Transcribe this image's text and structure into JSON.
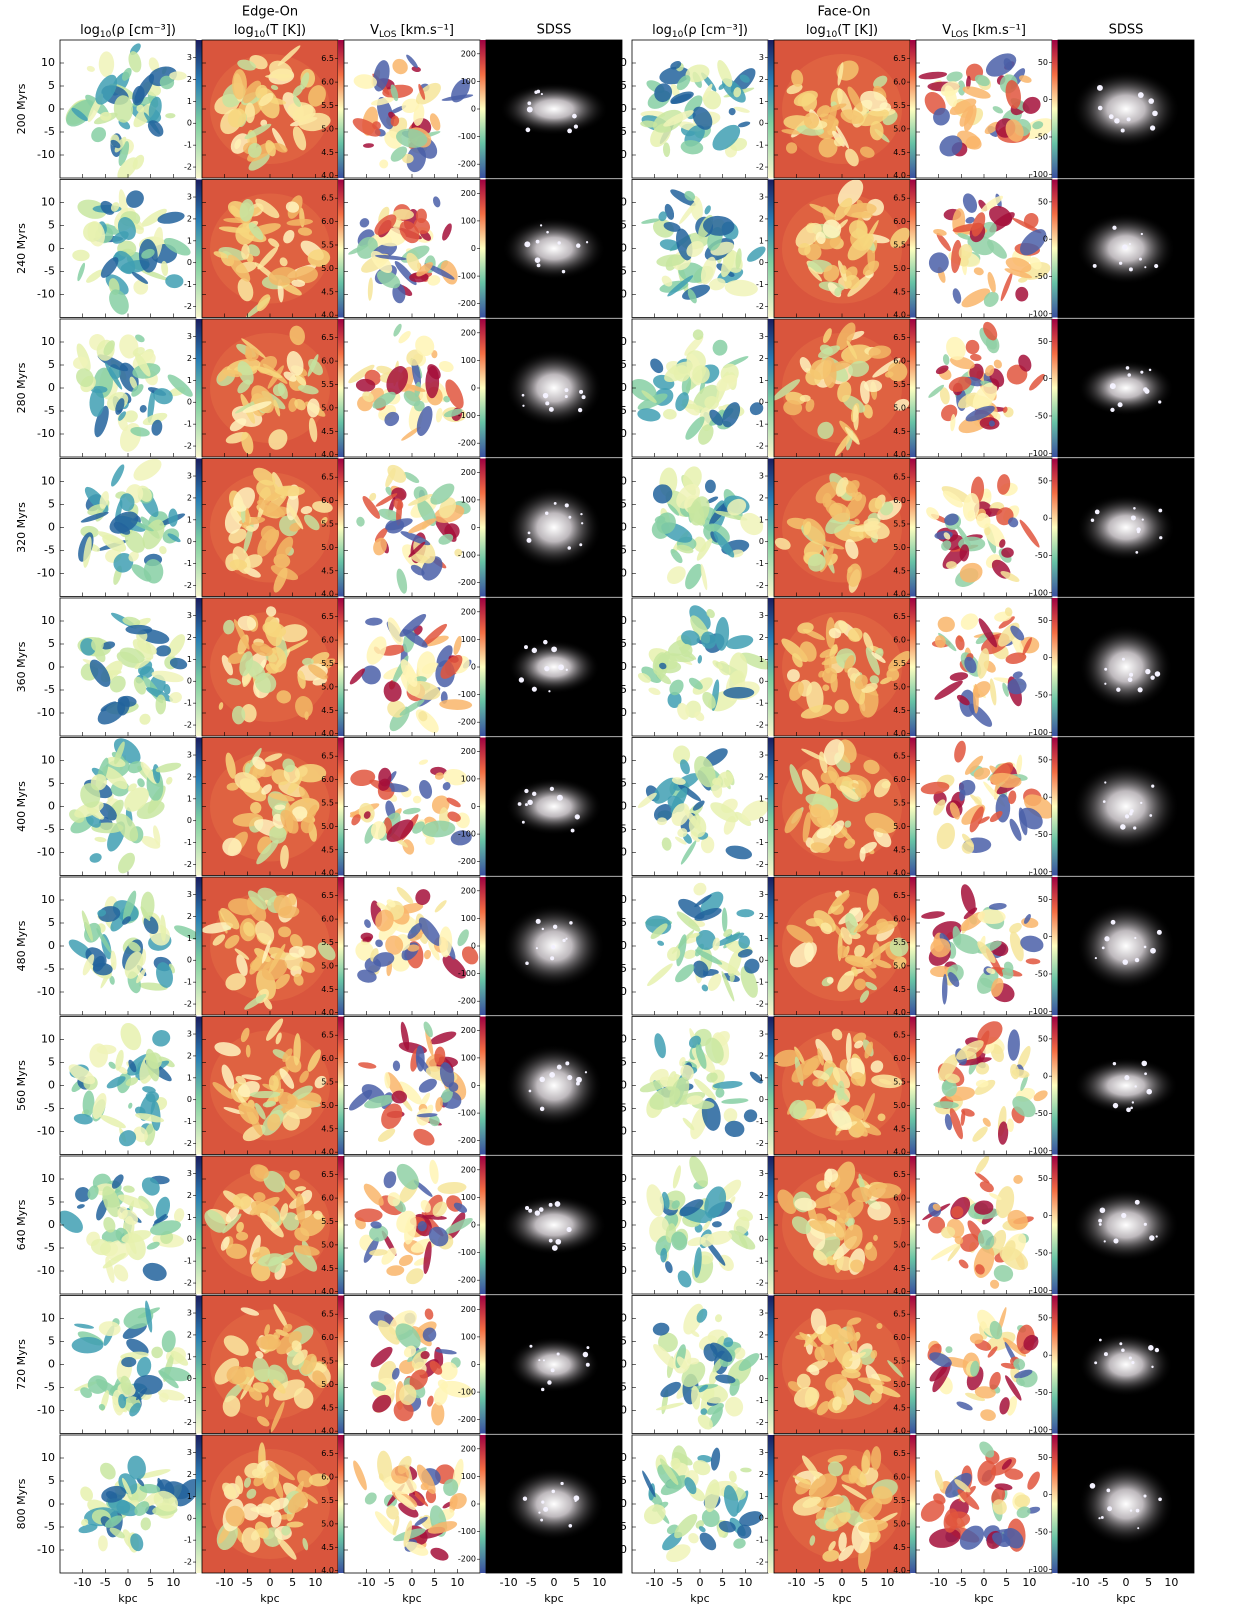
{
  "headers": {
    "edge_on": "Edge-On",
    "face_on": "Face-On",
    "density": {
      "a": "log",
      "sub": "10",
      "b": "(ρ [cm⁻³])"
    },
    "temperature": {
      "a": "log",
      "sub": "10",
      "b": "(T [K])"
    },
    "velocity": {
      "a": "V",
      "sub": "LOS",
      "b": " [km.s⁻¹]"
    },
    "sdss": "SDSS"
  },
  "rows": [
    "200 Myrs",
    "240 Myrs",
    "280 Myrs",
    "320 Myrs",
    "360 Myrs",
    "400 Myrs",
    "480 Myrs",
    "560 Myrs",
    "640 Myrs",
    "720 Myrs",
    "800 Myrs"
  ],
  "axes": {
    "xlim": [
      -15,
      15
    ],
    "ylim": [
      -15,
      15
    ],
    "xticks": [
      -10,
      -5,
      0,
      5,
      10
    ],
    "yticks": [
      -10,
      -5,
      0,
      5,
      10
    ],
    "xlabel": "kpc"
  },
  "colorbars": {
    "density": {
      "lim": [
        -2.5,
        3.8
      ],
      "ticks": [
        -2,
        -1,
        0,
        1,
        2,
        3
      ]
    },
    "temperature": {
      "lim": [
        3.95,
        6.9
      ],
      "ticks": [
        {
          "value": 4,
          "label": "4.0"
        },
        {
          "value": 4.5,
          "label": "4.5"
        },
        {
          "value": 5,
          "label": "5.0"
        },
        {
          "value": 5.5,
          "label": "5.5"
        },
        {
          "value": 6,
          "label": "6.0"
        },
        {
          "value": 6.5,
          "label": "6.5"
        }
      ]
    },
    "velocity_edge": {
      "lim": [
        -250,
        250
      ],
      "ticks": [
        -200,
        -100,
        0,
        100,
        200
      ]
    },
    "velocity_face": {
      "lim": [
        -105,
        80
      ],
      "ticks": [
        -100,
        -50,
        0,
        50
      ]
    }
  }
}
